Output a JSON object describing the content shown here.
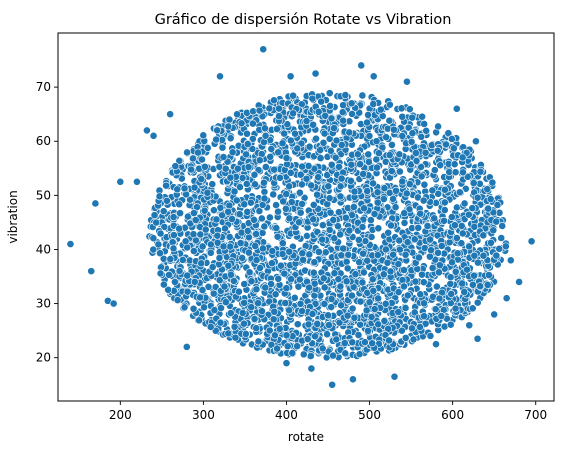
{
  "chart_data": {
    "type": "scatter",
    "title": "Gráfico de dispersión Rotate vs Vibration",
    "xlabel": "rotate",
    "ylabel": "vibration",
    "xlim": [
      125,
      722
    ],
    "ylim": [
      12,
      80
    ],
    "xticks": [
      200,
      300,
      400,
      500,
      600,
      700
    ],
    "yticks": [
      20,
      30,
      40,
      50,
      60,
      70
    ],
    "grid": false,
    "legend": "none",
    "marker_color": "#1f77b4",
    "marker_edge_color": "#ffffff",
    "cloud": {
      "x_center": 450,
      "y_center": 42,
      "x_radius": 215,
      "y_top": 69,
      "y_bottom": 20,
      "point_count": 3400
    },
    "points": [
      {
        "x": 140,
        "y": 41
      },
      {
        "x": 165,
        "y": 36
      },
      {
        "x": 170,
        "y": 48.5
      },
      {
        "x": 185,
        "y": 30.5
      },
      {
        "x": 192,
        "y": 30
      },
      {
        "x": 200,
        "y": 52.5
      },
      {
        "x": 220,
        "y": 52.5
      },
      {
        "x": 232,
        "y": 62
      },
      {
        "x": 240,
        "y": 61
      },
      {
        "x": 260,
        "y": 65
      },
      {
        "x": 280,
        "y": 22
      },
      {
        "x": 320,
        "y": 72
      },
      {
        "x": 372,
        "y": 77
      },
      {
        "x": 400,
        "y": 19
      },
      {
        "x": 405,
        "y": 72
      },
      {
        "x": 430,
        "y": 18
      },
      {
        "x": 435,
        "y": 72.5
      },
      {
        "x": 455,
        "y": 15
      },
      {
        "x": 480,
        "y": 16
      },
      {
        "x": 490,
        "y": 74
      },
      {
        "x": 505,
        "y": 72
      },
      {
        "x": 530,
        "y": 16.5
      },
      {
        "x": 545,
        "y": 71
      },
      {
        "x": 580,
        "y": 22.5
      },
      {
        "x": 605,
        "y": 66
      },
      {
        "x": 612,
        "y": 57
      },
      {
        "x": 620,
        "y": 26
      },
      {
        "x": 628,
        "y": 60
      },
      {
        "x": 630,
        "y": 23.5
      },
      {
        "x": 650,
        "y": 28
      },
      {
        "x": 665,
        "y": 31
      },
      {
        "x": 670,
        "y": 38
      },
      {
        "x": 680,
        "y": 34
      },
      {
        "x": 695,
        "y": 41.5
      }
    ]
  }
}
